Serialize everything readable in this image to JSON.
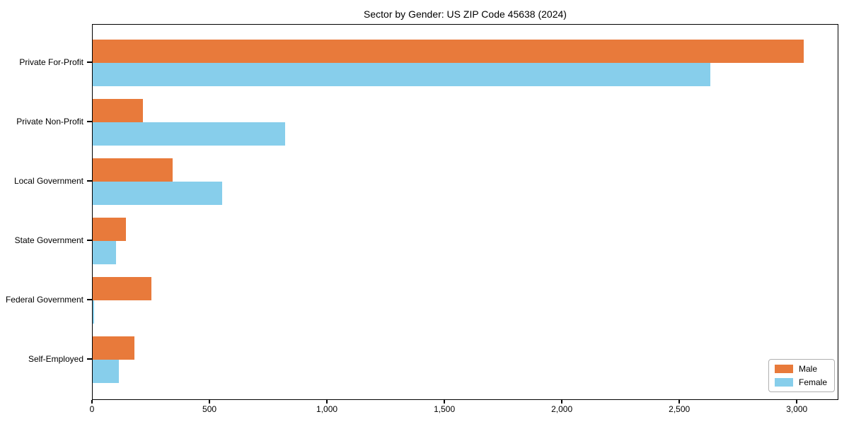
{
  "chart_data": {
    "type": "bar",
    "orientation": "horizontal",
    "title": "Sector by Gender: US ZIP Code 45638 (2024)",
    "categories": [
      "Private For-Profit",
      "Private Non-Profit",
      "Local Government",
      "State Government",
      "Federal Government",
      "Self-Employed"
    ],
    "series": [
      {
        "name": "Male",
        "color": "#e87a3b",
        "values": [
          3025,
          215,
          340,
          140,
          250,
          178
        ]
      },
      {
        "name": "Female",
        "color": "#87ceeb",
        "values": [
          2630,
          820,
          550,
          100,
          6,
          110
        ]
      }
    ],
    "xlim": [
      0,
      3177
    ],
    "x_ticks": [
      0,
      500,
      1000,
      1500,
      2000,
      2500,
      3000
    ],
    "x_tick_labels": [
      "0",
      "500",
      "1,000",
      "1,500",
      "2,000",
      "2,500",
      "3,000"
    ],
    "xlabel": "",
    "ylabel": "",
    "grid": false,
    "legend_position": "lower right",
    "colors": {
      "male": "#e87a3b",
      "female": "#87ceeb",
      "spine": "#000000",
      "background": "#ffffff"
    }
  }
}
